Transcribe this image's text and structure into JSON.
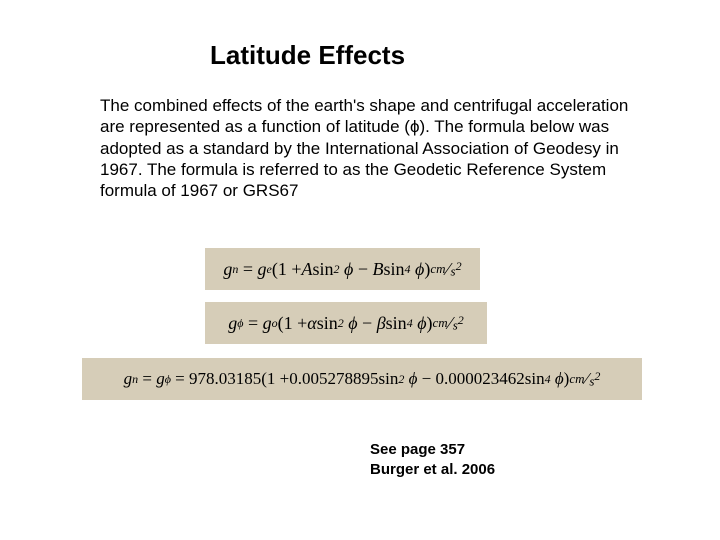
{
  "background_color": "#ffffff",
  "text_color": "#000000",
  "formula_bg_color": "#d6cdb8",
  "title": {
    "text": "Latitude Effects",
    "fontsize": 26,
    "fontweight": "bold"
  },
  "body": {
    "text": "The combined effects of the earth's shape and centrifugal acceleration are represented as a function of latitude (ϕ). The formula below was adopted as a standard by the International Association of Geodesy in 1967. The formula is referred to as the Geodetic Reference System formula of 1967 or GRS67",
    "fontsize": 17
  },
  "formulas": [
    {
      "lhs_base": "g",
      "lhs_sub": "n",
      "coef_base": "g",
      "coef_sub": "e",
      "term1_coef": "A",
      "term1_func": "sin",
      "term1_pow": "2",
      "term1_arg": "ϕ",
      "term2_coef": "B",
      "term2_func": "sin",
      "term2_pow": "4",
      "term2_arg": "ϕ",
      "unit_num": "cm",
      "unit_den_base": "s",
      "unit_den_pow": "2"
    },
    {
      "lhs_base": "g",
      "lhs_sub": "ϕ",
      "coef_base": "g",
      "coef_sub": "o",
      "term1_coef": "α",
      "term1_func": "sin",
      "term1_pow": "2",
      "term1_arg": "ϕ",
      "term2_coef": "β",
      "term2_func": "sin",
      "term2_pow": "4",
      "term2_arg": "ϕ",
      "unit_num": "cm",
      "unit_den_base": "s",
      "unit_den_pow": "2"
    },
    {
      "lhs1_base": "g",
      "lhs1_sub": "n",
      "lhs2_base": "g",
      "lhs2_sub": "ϕ",
      "num_coef": "978.03185",
      "term1_coef": "0.005278895",
      "term1_func": "sin",
      "term1_pow": "2",
      "term1_arg": "ϕ",
      "term2_coef": "0.000023462",
      "term2_func": "sin",
      "term2_pow": "4",
      "term2_arg": "ϕ",
      "unit_num": "cm",
      "unit_den_base": "s",
      "unit_den_pow": "2"
    }
  ],
  "citation": {
    "line1": "See page 357",
    "line2": "Burger et al. 2006",
    "fontsize": 15,
    "fontweight": "bold"
  }
}
